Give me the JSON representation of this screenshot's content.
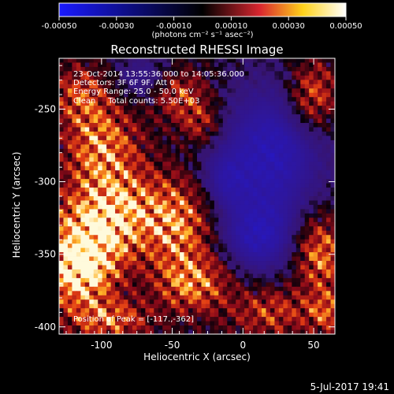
{
  "colorbar": {
    "ticks": [
      -0.0005,
      -0.0003,
      -0.0001,
      0.0001,
      0.0003,
      0.0005
    ],
    "tick_labels": [
      "-0.00050",
      "-0.00030",
      "-0.00010",
      "0.00010",
      "0.00030",
      "0.00050"
    ],
    "unit_label": "(photons cm⁻² s⁻¹ asec⁻²)",
    "range": [
      -0.0005,
      0.0005
    ],
    "colors": [
      "#1a1aff",
      "#000000",
      "#d9262f",
      "#ffd21a",
      "#ffffff"
    ]
  },
  "chart_data": {
    "type": "heatmap",
    "title": "Reconstructed RHESSI Image",
    "xlabel": "Heliocentric X (arcsec)",
    "ylabel": "Heliocentric Y (arcsec)",
    "xlim": [
      -130,
      65
    ],
    "ylim": [
      -405,
      -215
    ],
    "x_ticks": [
      -100,
      -50,
      0,
      50
    ],
    "x_tick_labels": [
      "-100",
      "-50",
      "0",
      "50"
    ],
    "y_ticks": [
      -400,
      -350,
      -300,
      -250
    ],
    "y_tick_labels": [
      "-400",
      "-350",
      "-300",
      "-250"
    ],
    "annotations": [
      "23-Oct-2014 13:55:36.000 to 14:05:36.000",
      "Detectors: 3F 6F 9F, Att 0",
      "Energy Range: 25.0 - 50.0 keV",
      "Clean     Total counts: 5.50E+03"
    ],
    "peak_label": "Position of Peak = [-117.,-362]",
    "peak": {
      "x": -117,
      "y": -362
    },
    "bright_regions": [
      {
        "x": -115,
        "y": -240,
        "sx": 14,
        "sy": 14,
        "w": 0.55
      },
      {
        "x": -100,
        "y": -275,
        "sx": 18,
        "sy": 20,
        "w": 0.8
      },
      {
        "x": -85,
        "y": -320,
        "sx": 22,
        "sy": 20,
        "w": 0.8
      },
      {
        "x": -110,
        "y": -340,
        "sx": 20,
        "sy": 22,
        "w": 0.85
      },
      {
        "x": -117,
        "y": -362,
        "sx": 16,
        "sy": 16,
        "w": 1.0
      },
      {
        "x": -95,
        "y": -395,
        "sx": 20,
        "sy": 10,
        "w": 0.7
      },
      {
        "x": -45,
        "y": -330,
        "sx": 16,
        "sy": 22,
        "w": 0.75
      },
      {
        "x": -35,
        "y": -370,
        "sx": 18,
        "sy": 14,
        "w": 0.75
      },
      {
        "x": -45,
        "y": -240,
        "sx": 14,
        "sy": 12,
        "w": 0.6
      },
      {
        "x": -30,
        "y": -260,
        "sx": 10,
        "sy": 10,
        "w": 0.45
      },
      {
        "x": 20,
        "y": -390,
        "sx": 20,
        "sy": 12,
        "w": 0.55
      },
      {
        "x": 55,
        "y": -350,
        "sx": 12,
        "sy": 18,
        "w": 0.8
      },
      {
        "x": 50,
        "y": -240,
        "sx": 12,
        "sy": 16,
        "w": 0.7
      },
      {
        "x": 60,
        "y": -390,
        "sx": 10,
        "sy": 10,
        "w": 0.6
      }
    ],
    "dark_regions": [
      {
        "x": 20,
        "y": -280,
        "sx": 28,
        "sy": 35,
        "w": 1.0
      },
      {
        "x": 10,
        "y": -340,
        "sx": 20,
        "sy": 18,
        "w": 0.8
      },
      {
        "x": -70,
        "y": -230,
        "sx": 16,
        "sy": 12,
        "w": 0.6
      },
      {
        "x": -15,
        "y": -300,
        "sx": 12,
        "sy": 14,
        "w": 0.5
      }
    ]
  },
  "footer": {
    "date": "5-Jul-2017 19:41"
  }
}
